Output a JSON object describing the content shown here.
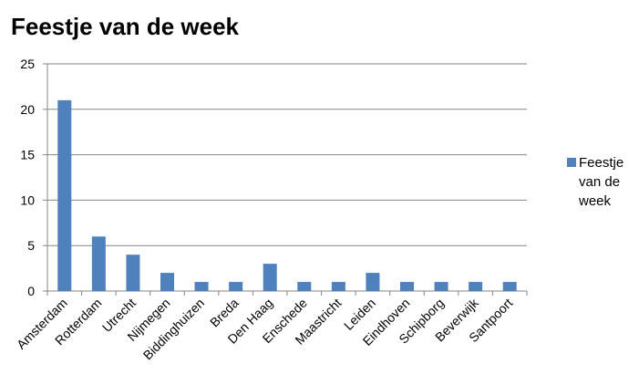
{
  "chart_data": {
    "type": "bar",
    "title": "Feestje van de week",
    "categories": [
      "Amsterdam",
      "Rotterdam",
      "Utrecht",
      "Nijmegen",
      "Biddinghuizen",
      "Breda",
      "Den Haag",
      "Enschede",
      "Maastricht",
      "Leiden",
      "Eindhoven",
      "Schipborg",
      "Beverwijk",
      "Santpoort"
    ],
    "series": [
      {
        "name": "Feestje van de week",
        "color": "#4f81bd",
        "values": [
          21,
          6,
          4,
          2,
          1,
          1,
          3,
          1,
          1,
          2,
          1,
          1,
          1,
          1
        ]
      }
    ],
    "ylim": [
      0,
      25
    ],
    "yticks": [
      0,
      5,
      10,
      15,
      20,
      25
    ],
    "grid": true,
    "legend": "right"
  }
}
